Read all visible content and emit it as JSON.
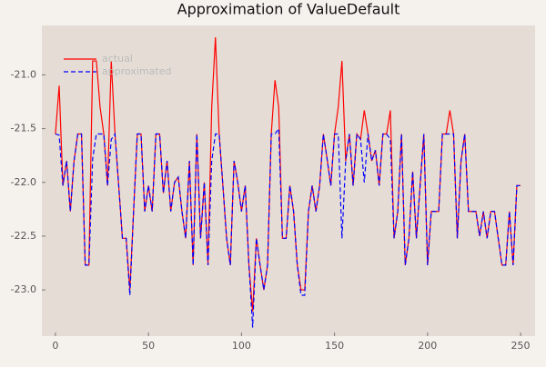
{
  "chart_data": {
    "type": "line",
    "title": "Approximation of ValueDefault",
    "x": [
      0,
      2,
      4,
      6,
      8,
      10,
      12,
      14,
      16,
      18,
      20,
      22,
      24,
      26,
      28,
      30,
      32,
      34,
      36,
      38,
      40,
      42,
      44,
      46,
      48,
      50,
      52,
      54,
      56,
      58,
      60,
      62,
      64,
      66,
      68,
      70,
      72,
      74,
      76,
      78,
      80,
      82,
      84,
      86,
      88,
      90,
      92,
      94,
      96,
      98,
      100,
      102,
      104,
      106,
      108,
      110,
      112,
      114,
      116,
      118,
      120,
      122,
      124,
      126,
      128,
      130,
      132,
      134,
      136,
      138,
      140,
      142,
      144,
      146,
      148,
      150,
      152,
      154,
      156,
      158,
      160,
      162,
      164,
      166,
      168,
      170,
      172,
      174,
      176,
      178,
      180,
      182,
      184,
      186,
      188,
      190,
      192,
      194,
      196,
      198,
      200,
      202,
      204,
      206,
      208,
      210,
      212,
      214,
      216,
      218,
      220,
      222,
      224,
      226,
      228,
      230,
      232,
      234,
      236,
      238,
      240,
      242,
      244,
      246,
      248,
      250
    ],
    "series": [
      {
        "name": "actual",
        "color": "#ff0000",
        "dash": false,
        "values": [
          -21.55,
          -21.1,
          -22.03,
          -21.8,
          -22.27,
          -21.8,
          -21.55,
          -21.55,
          -22.77,
          -22.77,
          -20.87,
          -20.87,
          -21.3,
          -21.55,
          -22.03,
          -20.87,
          -21.55,
          -22.03,
          -22.52,
          -22.52,
          -23.0,
          -22.27,
          -21.55,
          -21.55,
          -22.27,
          -22.03,
          -22.27,
          -21.55,
          -21.55,
          -22.1,
          -21.8,
          -22.27,
          -22.0,
          -21.95,
          -22.27,
          -22.52,
          -21.8,
          -22.77,
          -21.55,
          -22.52,
          -22.0,
          -22.77,
          -21.3,
          -20.65,
          -21.55,
          -22.03,
          -22.52,
          -22.77,
          -21.8,
          -22.0,
          -22.27,
          -22.03,
          -22.77,
          -23.2,
          -22.52,
          -22.77,
          -23.0,
          -22.77,
          -21.55,
          -21.05,
          -21.3,
          -22.52,
          -22.52,
          -22.03,
          -22.27,
          -22.77,
          -23.0,
          -23.0,
          -22.27,
          -22.03,
          -22.27,
          -22.03,
          -21.55,
          -21.78,
          -22.03,
          -21.55,
          -21.3,
          -20.87,
          -21.8,
          -21.55,
          -22.03,
          -21.55,
          -21.6,
          -21.33,
          -21.55,
          -21.8,
          -21.7,
          -22.03,
          -21.55,
          -21.55,
          -21.33,
          -22.52,
          -22.27,
          -21.55,
          -22.77,
          -22.52,
          -21.9,
          -22.52,
          -22.03,
          -21.55,
          -22.77,
          -22.27,
          -22.27,
          -22.27,
          -21.55,
          -21.55,
          -21.33,
          -21.55,
          -22.52,
          -21.8,
          -21.55,
          -22.27,
          -22.27,
          -22.27,
          -22.5,
          -22.27,
          -22.52,
          -22.27,
          -22.27,
          -22.52,
          -22.77,
          -22.77,
          -22.27,
          -22.77,
          -22.03,
          -22.03
        ]
      },
      {
        "name": "approximated",
        "color": "#0000ff",
        "dash": true,
        "values": [
          -21.55,
          -21.56,
          -22.03,
          -21.8,
          -22.27,
          -21.8,
          -21.55,
          -21.55,
          -22.77,
          -22.77,
          -21.78,
          -21.55,
          -21.55,
          -21.55,
          -22.03,
          -21.6,
          -21.55,
          -22.03,
          -22.52,
          -22.52,
          -23.05,
          -22.27,
          -21.55,
          -21.55,
          -22.27,
          -22.03,
          -22.27,
          -21.55,
          -21.55,
          -22.1,
          -21.8,
          -22.27,
          -22.0,
          -21.95,
          -22.27,
          -22.52,
          -21.8,
          -22.77,
          -21.55,
          -22.52,
          -22.0,
          -22.77,
          -21.8,
          -21.55,
          -21.55,
          -22.03,
          -22.52,
          -22.77,
          -21.8,
          -22.0,
          -22.27,
          -22.03,
          -22.77,
          -23.35,
          -22.52,
          -22.77,
          -23.0,
          -22.77,
          -21.55,
          -21.55,
          -21.5,
          -22.52,
          -22.52,
          -22.03,
          -22.27,
          -22.77,
          -23.05,
          -23.05,
          -22.27,
          -22.03,
          -22.27,
          -22.03,
          -21.55,
          -21.78,
          -22.03,
          -21.55,
          -21.55,
          -22.52,
          -21.8,
          -21.55,
          -22.03,
          -21.55,
          -21.6,
          -22.0,
          -21.55,
          -21.8,
          -21.7,
          -22.03,
          -21.55,
          -21.55,
          -21.6,
          -22.52,
          -22.27,
          -21.55,
          -22.77,
          -22.52,
          -21.9,
          -22.52,
          -22.03,
          -21.55,
          -22.77,
          -22.27,
          -22.27,
          -22.27,
          -21.55,
          -21.55,
          -21.55,
          -21.55,
          -22.52,
          -21.8,
          -21.55,
          -22.27,
          -22.27,
          -22.27,
          -22.5,
          -22.27,
          -22.52,
          -22.27,
          -22.27,
          -22.52,
          -22.77,
          -22.77,
          -22.27,
          -22.77,
          -22.03,
          -22.03
        ]
      }
    ],
    "xlim": [
      -7.3,
      257.8
    ],
    "xticks": [
      0,
      50,
      100,
      150,
      200,
      250
    ],
    "ylim": [
      -23.43,
      -20.54
    ],
    "yticks": [
      {
        "value": -21,
        "label": "-21.0"
      },
      {
        "value": -21.5,
        "label": "-21.5"
      },
      {
        "value": -22,
        "label": "-22.0"
      },
      {
        "value": -22.5,
        "label": "-22.5"
      },
      {
        "value": -23,
        "label": "-23.0"
      }
    ],
    "legend": "top-left",
    "plot_background": "#e5ddd5"
  }
}
